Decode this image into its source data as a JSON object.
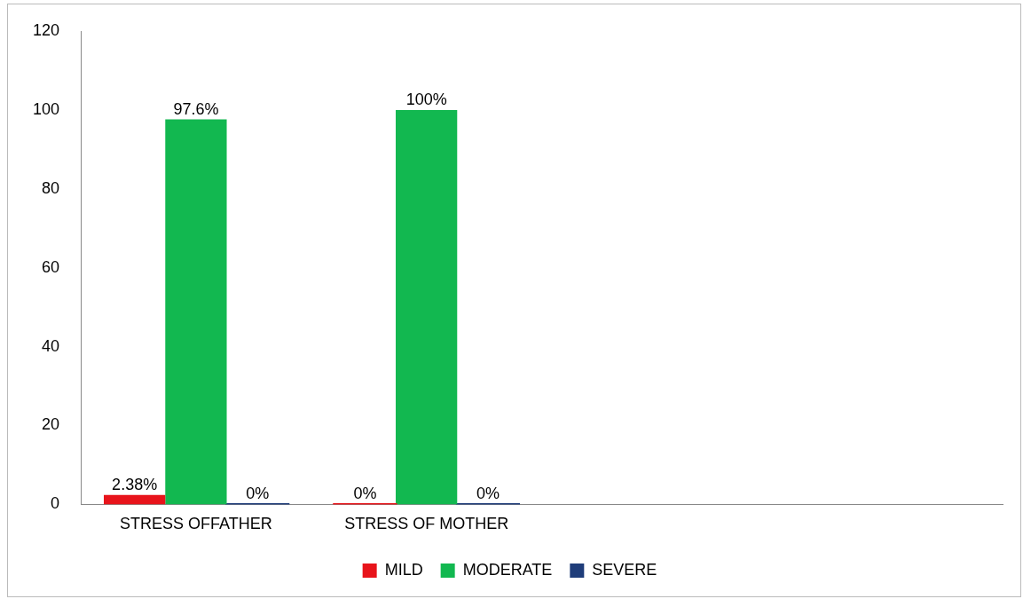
{
  "chart_data": {
    "type": "bar",
    "categories": [
      "STRESS OFFATHER",
      "STRESS OF MOTHER",
      null,
      null
    ],
    "series": [
      {
        "name": "MILD",
        "color": "#e8141b",
        "values": [
          2.38,
          0,
          null,
          null
        ],
        "value_labels": [
          "2.38%",
          "0%",
          null,
          null
        ]
      },
      {
        "name": "MODERATE",
        "color": "#12b850",
        "values": [
          97.6,
          100,
          null,
          null
        ],
        "value_labels": [
          "97.6%",
          "100%",
          null,
          null
        ]
      },
      {
        "name": "SEVERE",
        "color": "#1f3d7a",
        "values": [
          0,
          0,
          null,
          null
        ],
        "value_labels": [
          "0%",
          "0%",
          null,
          null
        ]
      }
    ],
    "ylim": [
      0,
      120
    ],
    "yticks": [
      0,
      20,
      40,
      60,
      80,
      100,
      120
    ],
    "grid": false,
    "legend": "bottom"
  }
}
